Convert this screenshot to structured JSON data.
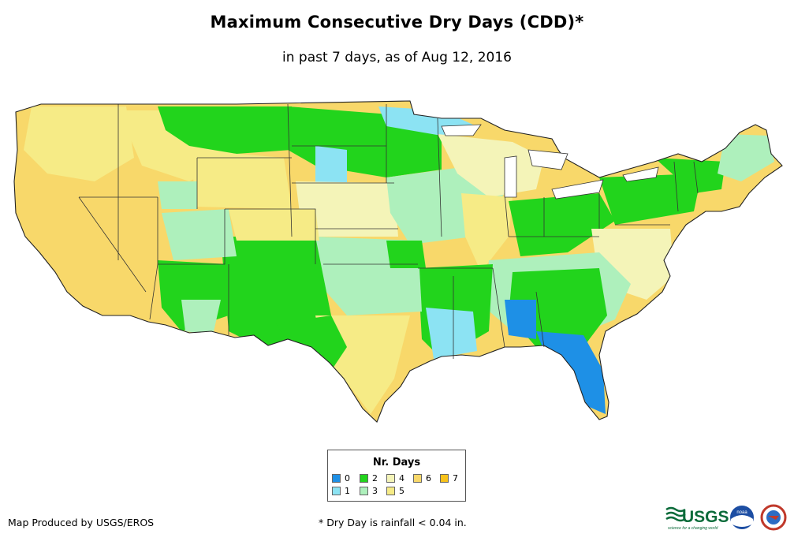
{
  "title": "Maximum Consecutive Dry Days (CDD)*",
  "subtitle": "in past 7 days, as of Aug 12, 2016",
  "legend": {
    "title": "Nr. Days",
    "items": [
      {
        "label": "0",
        "color": "#1e90e6"
      },
      {
        "label": "1",
        "color": "#8ce3f3"
      },
      {
        "label": "2",
        "color": "#22d41c"
      },
      {
        "label": "3",
        "color": "#aef0bc"
      },
      {
        "label": "4",
        "color": "#f4f4b8"
      },
      {
        "label": "5",
        "color": "#f6eb86"
      },
      {
        "label": "6",
        "color": "#f8d86a"
      },
      {
        "label": "7",
        "color": "#f7c21a"
      }
    ]
  },
  "credit": "Map Produced by USGS/EROS",
  "footnote": "* Dry Day is rainfall < 0.04 in.",
  "logos": {
    "usgs_text": "USGS",
    "usgs_tagline": "science for a changing world",
    "noaa_text": "noaa"
  }
}
